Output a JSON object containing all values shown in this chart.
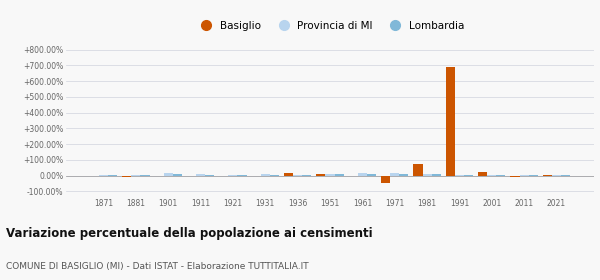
{
  "years": [
    1871,
    1881,
    1901,
    1911,
    1921,
    1931,
    1936,
    1951,
    1961,
    1971,
    1981,
    1991,
    2001,
    2011,
    2021
  ],
  "basiglio": [
    0.0,
    -10.0,
    0.0,
    -5.0,
    0.0,
    0.0,
    15.0,
    10.0,
    -5.0,
    -50.0,
    75.0,
    690.0,
    25.0,
    -8.0,
    5.0
  ],
  "provincia_mi": [
    3.0,
    3.0,
    18.0,
    10.0,
    6.0,
    10.0,
    6.0,
    12.0,
    18.0,
    14.0,
    12.0,
    2.0,
    4.0,
    4.0,
    4.0
  ],
  "lombardia": [
    2.0,
    2.0,
    8.0,
    6.0,
    4.0,
    6.0,
    4.0,
    10.0,
    10.0,
    8.0,
    8.0,
    1.5,
    2.5,
    2.5,
    2.5
  ],
  "color_basiglio": "#cc5500",
  "color_provincia": "#b8d4ee",
  "color_lombardia": "#80b8d8",
  "title": "Variazione percentuale della popolazione ai censimenti",
  "subtitle": "COMUNE DI BASIGLIO (MI) - Dati ISTAT - Elaborazione TUTTITALIA.IT",
  "yticks": [
    -100,
    0,
    100,
    200,
    300,
    400,
    500,
    600,
    700,
    800
  ],
  "ylim": [
    -130,
    830
  ],
  "background": "#f8f8f8"
}
